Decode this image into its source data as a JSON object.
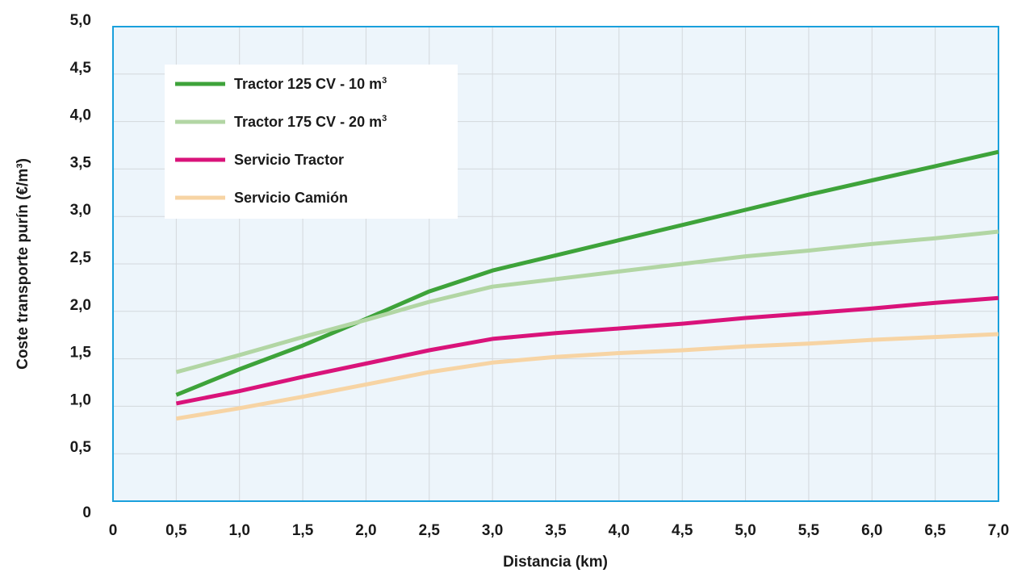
{
  "chart_data": {
    "type": "line",
    "title": "",
    "xlabel": "Distancia (km)",
    "ylabel": "Coste transporte purín (€/m³)",
    "xlim": [
      0,
      7
    ],
    "ylim": [
      0,
      5
    ],
    "grid": true,
    "legend_position": "top-left",
    "background_color": "#edf5fb",
    "frame_color": "#1aa0dc",
    "grid_color": "#d3d8dc",
    "x_ticks": [
      {
        "value": 0,
        "label": "0"
      },
      {
        "value": 0.5,
        "label": "0,5"
      },
      {
        "value": 1.0,
        "label": "1,0"
      },
      {
        "value": 1.5,
        "label": "1,5"
      },
      {
        "value": 2.0,
        "label": "2,0"
      },
      {
        "value": 2.5,
        "label": "2,5"
      },
      {
        "value": 3.0,
        "label": "3,0"
      },
      {
        "value": 3.5,
        "label": "3,5"
      },
      {
        "value": 4.0,
        "label": "4,0"
      },
      {
        "value": 4.5,
        "label": "4,5"
      },
      {
        "value": 5.0,
        "label": "5,0"
      },
      {
        "value": 5.5,
        "label": "5,5"
      },
      {
        "value": 6.0,
        "label": "6,0"
      },
      {
        "value": 6.5,
        "label": "6,5"
      },
      {
        "value": 7.0,
        "label": "7,0"
      }
    ],
    "y_ticks": [
      {
        "value": 0,
        "label": "0"
      },
      {
        "value": 0.5,
        "label": "0,5"
      },
      {
        "value": 1.0,
        "label": "1,0"
      },
      {
        "value": 1.5,
        "label": "1,5"
      },
      {
        "value": 2.0,
        "label": "2,0"
      },
      {
        "value": 2.5,
        "label": "2,5"
      },
      {
        "value": 3.0,
        "label": "3,0"
      },
      {
        "value": 3.5,
        "label": "3,5"
      },
      {
        "value": 4.0,
        "label": "4,0"
      },
      {
        "value": 4.5,
        "label": "4,5"
      },
      {
        "value": 5.0,
        "label": "5,0"
      }
    ],
    "series": [
      {
        "name": "Tractor 125 CV - 10 m³",
        "legend_main": "Tractor 125 CV - 10 m",
        "legend_sup": "3",
        "color": "#3ea33a",
        "x": [
          0.5,
          1.0,
          1.5,
          2.0,
          2.5,
          3.0,
          3.5,
          4.0,
          4.5,
          5.0,
          5.5,
          6.0,
          6.5,
          7.0
        ],
        "y": [
          1.12,
          1.39,
          1.64,
          1.92,
          2.21,
          2.43,
          2.59,
          2.75,
          2.91,
          3.07,
          3.23,
          3.38,
          3.53,
          3.68
        ]
      },
      {
        "name": "Tractor 175 CV - 20 m³",
        "legend_main": "Tractor 175 CV - 20 m",
        "legend_sup": "3",
        "color": "#b2d6a4",
        "x": [
          0.5,
          1.0,
          1.5,
          2.0,
          2.5,
          3.0,
          3.5,
          4.0,
          4.5,
          5.0,
          5.5,
          6.0,
          6.5,
          7.0
        ],
        "y": [
          1.36,
          1.54,
          1.73,
          1.91,
          2.1,
          2.26,
          2.34,
          2.42,
          2.5,
          2.58,
          2.64,
          2.71,
          2.77,
          2.84
        ]
      },
      {
        "name": "Servicio Tractor",
        "legend_main": "Servicio Tractor",
        "legend_sup": "",
        "color": "#d9137a",
        "x": [
          0.5,
          1.0,
          1.5,
          2.0,
          2.5,
          3.0,
          3.5,
          4.0,
          4.5,
          5.0,
          5.5,
          6.0,
          6.5,
          7.0
        ],
        "y": [
          1.03,
          1.16,
          1.31,
          1.45,
          1.59,
          1.71,
          1.77,
          1.82,
          1.87,
          1.93,
          1.98,
          2.03,
          2.09,
          2.14
        ]
      },
      {
        "name": "Servicio Camión",
        "legend_main": "Servicio Camión",
        "legend_sup": "",
        "color": "#f7d4a4",
        "x": [
          0.5,
          1.0,
          1.5,
          2.0,
          2.5,
          3.0,
          3.5,
          4.0,
          4.5,
          5.0,
          5.5,
          6.0,
          6.5,
          7.0
        ],
        "y": [
          0.87,
          0.98,
          1.1,
          1.23,
          1.36,
          1.46,
          1.52,
          1.56,
          1.59,
          1.63,
          1.66,
          1.7,
          1.73,
          1.76
        ]
      }
    ]
  }
}
